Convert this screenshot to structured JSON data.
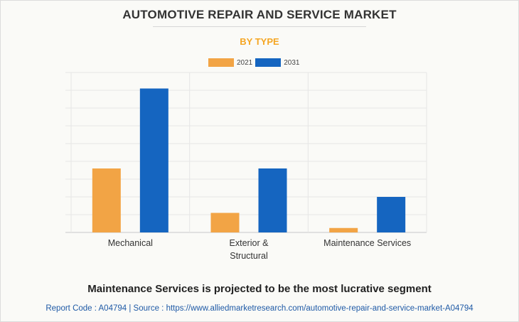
{
  "title": "AUTOMOTIVE REPAIR AND SERVICE MARKET",
  "subtitle": "BY TYPE",
  "colors": {
    "accent": "#f5a623",
    "series_2021": "#f2a445",
    "series_2031": "#1565c0",
    "footer_text": "#1f5aa6"
  },
  "chart_data": {
    "type": "bar",
    "categories": [
      "Mechanical",
      "Exterior & Structural",
      "Maintenance Services"
    ],
    "category_lines": [
      [
        "Mechanical"
      ],
      [
        "Exterior &",
        "Structural"
      ],
      [
        "Maintenance Services"
      ]
    ],
    "series": [
      {
        "name": "2021",
        "values": [
          3.6,
          1.1,
          0.25
        ]
      },
      {
        "name": "2031",
        "values": [
          8.1,
          3.6,
          2.0
        ]
      }
    ],
    "ylim": [
      0,
      9
    ],
    "grid": true,
    "legend": "top-center"
  },
  "footer": {
    "message": "Maintenance Services is projected to be the most lucrative segment",
    "source": "Report Code : A04794  |  Source : https://www.alliedmarketresearch.com/automotive-repair-and-service-market-A04794"
  }
}
